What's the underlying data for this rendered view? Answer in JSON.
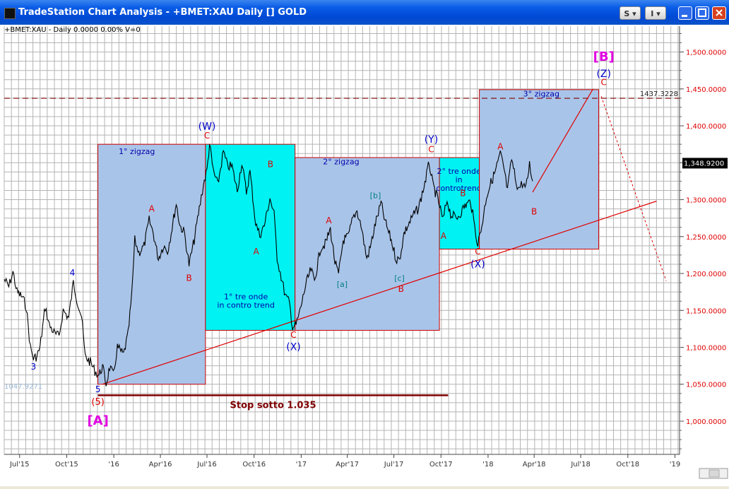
{
  "window": {
    "title": "TradeStation Chart Analysis - +BMET:XAU Daily [] GOLD",
    "btn_s": "S",
    "btn_i": "I"
  },
  "chart_data": {
    "type": "line",
    "title": "+BMET:XAU - Daily  0.0000  0.00%  V=0",
    "y_range": [
      955,
      1535
    ],
    "y_ticks": [
      {
        "v": 1000,
        "label": "1,000.0000"
      },
      {
        "v": 1050,
        "label": "1,050.0000"
      },
      {
        "v": 1100,
        "label": "1,100.0000"
      },
      {
        "v": 1150,
        "label": "1,150.0000"
      },
      {
        "v": 1200,
        "label": "1,200.0000"
      },
      {
        "v": 1250,
        "label": "1,250.0000"
      },
      {
        "v": 1300,
        "label": "1,300.0000"
      },
      {
        "v": 1350,
        "label": "1,350.0000"
      },
      {
        "v": 1400,
        "label": "1,400.0000"
      },
      {
        "v": 1450,
        "label": "1,450.0000"
      },
      {
        "v": 1500,
        "label": "1,500.0000"
      }
    ],
    "x_range": [
      "2015-06-01",
      "2019-01-10"
    ],
    "x_ticks": [
      {
        "d": "2015-07-01",
        "label": "Jul'15"
      },
      {
        "d": "2015-10-01",
        "label": "Oct'15"
      },
      {
        "d": "2016-01-01",
        "label": "'16"
      },
      {
        "d": "2016-04-01",
        "label": "Apr'16"
      },
      {
        "d": "2016-07-01",
        "label": "Jul'16"
      },
      {
        "d": "2016-10-01",
        "label": "Oct'16"
      },
      {
        "d": "2017-01-01",
        "label": "'17"
      },
      {
        "d": "2017-04-01",
        "label": "Apr'17"
      },
      {
        "d": "2017-07-01",
        "label": "Jul'17"
      },
      {
        "d": "2017-10-01",
        "label": "Oct'17"
      },
      {
        "d": "2018-01-01",
        "label": "'18"
      },
      {
        "d": "2018-04-01",
        "label": "Apr'18"
      },
      {
        "d": "2018-07-01",
        "label": "Jul'18"
      },
      {
        "d": "2018-10-01",
        "label": "Oct'18"
      },
      {
        "d": "2019-01-01",
        "label": "'19"
      }
    ],
    "price_series": {
      "name": "GOLD",
      "points": [
        [
          "2015-06-01",
          1192
        ],
        [
          "2015-06-10",
          1182
        ],
        [
          "2015-06-18",
          1202
        ],
        [
          "2015-06-26",
          1175
        ],
        [
          "2015-07-06",
          1168
        ],
        [
          "2015-07-14",
          1155
        ],
        [
          "2015-07-22",
          1100
        ],
        [
          "2015-07-28",
          1085
        ],
        [
          "2015-08-04",
          1088
        ],
        [
          "2015-08-10",
          1100
        ],
        [
          "2015-08-20",
          1155
        ],
        [
          "2015-08-28",
          1130
        ],
        [
          "2015-09-08",
          1118
        ],
        [
          "2015-09-16",
          1115
        ],
        [
          "2015-09-24",
          1150
        ],
        [
          "2015-10-05",
          1140
        ],
        [
          "2015-10-14",
          1188
        ],
        [
          "2015-10-22",
          1162
        ],
        [
          "2015-10-30",
          1142
        ],
        [
          "2015-11-06",
          1088
        ],
        [
          "2015-11-16",
          1080
        ],
        [
          "2015-11-25",
          1068
        ],
        [
          "2015-12-03",
          1062
        ],
        [
          "2015-12-10",
          1074
        ],
        [
          "2015-12-17",
          1050
        ],
        [
          "2015-12-24",
          1073
        ],
        [
          "2015-12-31",
          1062
        ],
        [
          "2016-01-08",
          1100
        ],
        [
          "2016-01-20",
          1090
        ],
        [
          "2016-01-29",
          1118
        ],
        [
          "2016-02-05",
          1170
        ],
        [
          "2016-02-11",
          1245
        ],
        [
          "2016-02-19",
          1228
        ],
        [
          "2016-02-29",
          1237
        ],
        [
          "2016-03-10",
          1272
        ],
        [
          "2016-03-18",
          1255
        ],
        [
          "2016-03-28",
          1220
        ],
        [
          "2016-04-07",
          1238
        ],
        [
          "2016-04-15",
          1230
        ],
        [
          "2016-04-22",
          1255
        ],
        [
          "2016-05-02",
          1295
        ],
        [
          "2016-05-09",
          1265
        ],
        [
          "2016-05-18",
          1255
        ],
        [
          "2016-05-27",
          1212
        ],
        [
          "2016-06-06",
          1245
        ],
        [
          "2016-06-16",
          1288
        ],
        [
          "2016-06-24",
          1320
        ],
        [
          "2016-07-01",
          1340
        ],
        [
          "2016-07-06",
          1375
        ],
        [
          "2016-07-13",
          1340
        ],
        [
          "2016-07-22",
          1320
        ],
        [
          "2016-08-02",
          1365
        ],
        [
          "2016-08-10",
          1345
        ],
        [
          "2016-08-19",
          1345
        ],
        [
          "2016-08-29",
          1312
        ],
        [
          "2016-09-07",
          1350
        ],
        [
          "2016-09-16",
          1310
        ],
        [
          "2016-09-23",
          1338
        ],
        [
          "2016-10-04",
          1268
        ],
        [
          "2016-10-12",
          1252
        ],
        [
          "2016-10-21",
          1265
        ],
        [
          "2016-11-01",
          1302
        ],
        [
          "2016-11-09",
          1280
        ],
        [
          "2016-11-15",
          1222
        ],
        [
          "2016-11-23",
          1195
        ],
        [
          "2016-12-01",
          1170
        ],
        [
          "2016-12-09",
          1160
        ],
        [
          "2016-12-15",
          1128
        ],
        [
          "2016-12-22",
          1130
        ],
        [
          "2016-12-30",
          1150
        ],
        [
          "2017-01-10",
          1185
        ],
        [
          "2017-01-20",
          1205
        ],
        [
          "2017-01-27",
          1190
        ],
        [
          "2017-02-08",
          1235
        ],
        [
          "2017-02-17",
          1240
        ],
        [
          "2017-02-27",
          1260
        ],
        [
          "2017-03-08",
          1215
        ],
        [
          "2017-03-15",
          1198
        ],
        [
          "2017-03-24",
          1245
        ],
        [
          "2017-04-03",
          1250
        ],
        [
          "2017-04-12",
          1275
        ],
        [
          "2017-04-20",
          1285
        ],
        [
          "2017-04-28",
          1265
        ],
        [
          "2017-05-09",
          1220
        ],
        [
          "2017-05-16",
          1235
        ],
        [
          "2017-05-26",
          1268
        ],
        [
          "2017-06-06",
          1295
        ],
        [
          "2017-06-14",
          1270
        ],
        [
          "2017-06-26",
          1245
        ],
        [
          "2017-07-05",
          1220
        ],
        [
          "2017-07-12",
          1218
        ],
        [
          "2017-07-21",
          1255
        ],
        [
          "2017-07-31",
          1268
        ],
        [
          "2017-08-09",
          1280
        ],
        [
          "2017-08-18",
          1288
        ],
        [
          "2017-08-29",
          1318
        ],
        [
          "2017-09-08",
          1350
        ],
        [
          "2017-09-15",
          1320
        ],
        [
          "2017-09-25",
          1300
        ],
        [
          "2017-10-05",
          1272
        ],
        [
          "2017-10-13",
          1300
        ],
        [
          "2017-10-20",
          1280
        ],
        [
          "2017-10-31",
          1275
        ],
        [
          "2017-11-08",
          1282
        ],
        [
          "2017-11-17",
          1292
        ],
        [
          "2017-11-28",
          1298
        ],
        [
          "2017-12-06",
          1262
        ],
        [
          "2017-12-12",
          1240
        ],
        [
          "2017-12-20",
          1265
        ],
        [
          "2017-12-29",
          1305
        ],
        [
          "2018-01-05",
          1320
        ],
        [
          "2018-01-15",
          1338
        ],
        [
          "2018-01-25",
          1362
        ],
        [
          "2018-02-01",
          1342
        ],
        [
          "2018-02-08",
          1312
        ],
        [
          "2018-02-16",
          1355
        ],
        [
          "2018-02-23",
          1330
        ],
        [
          "2018-03-01",
          1315
        ],
        [
          "2018-03-09",
          1322
        ],
        [
          "2018-03-16",
          1315
        ],
        [
          "2018-03-23",
          1348
        ],
        [
          "2018-03-29",
          1325
        ]
      ]
    },
    "trendline": {
      "from": [
        "2015-12-10",
        1050
      ],
      "to": [
        "2018-11-26",
        1298
      ]
    },
    "stop_line": {
      "from": [
        "2015-12-01",
        1035
      ],
      "to": [
        "2017-10-15",
        1035
      ],
      "label": "Stop sotto 1.035"
    },
    "resistance_line": {
      "value": 1437.3228,
      "label": "1437.3228"
    },
    "last_price_label": "1,348.9200",
    "left_price_label": "1047.9271",
    "boxes": [
      {
        "x0": "2015-12-01",
        "x1": "2016-06-28",
        "y0": 1050,
        "y1": 1375,
        "fill": "#A9C4E9",
        "label": "1° zigzag",
        "label_at": [
          "2016-02-15",
          1362
        ]
      },
      {
        "x0": "2016-06-28",
        "x1": "2016-12-20",
        "y0": 1123,
        "y1": 1375,
        "fill": "#00F2F2",
        "label": "1° tre onde\nin contro trend",
        "label_at": [
          "2016-09-15",
          1165
        ]
      },
      {
        "x0": "2016-12-20",
        "x1": "2017-09-28",
        "y0": 1123,
        "y1": 1357,
        "fill": "#A9C4E9",
        "label": "2° zigzag",
        "label_at": [
          "2017-03-20",
          1348
        ]
      },
      {
        "x0": "2017-09-28",
        "x1": "2017-12-15",
        "y0": 1233,
        "y1": 1357,
        "fill": "#00F2F2",
        "label": "2° tre onde\nin\ncontrotrend",
        "label_at": [
          "2017-11-05",
          1335
        ]
      },
      {
        "x0": "2017-12-15",
        "x1": "2018-08-05",
        "y0": 1233,
        "y1": 1449,
        "fill": "#A9C4E9",
        "label": "3° zigzag",
        "label_at": [
          "2018-04-15",
          1440
        ]
      }
    ],
    "projection": [
      [
        "2018-03-29",
        1310
      ],
      [
        "2018-07-25",
        1450
      ]
    ],
    "projection_dotted": [
      [
        "2018-08-10",
        1440
      ],
      [
        "2018-12-15",
        1190
      ]
    ],
    "wave_labels": [
      {
        "d": "2015-10-12",
        "v": 1197,
        "text": "4",
        "color": "#0000CC",
        "size": 12
      },
      {
        "d": "2015-07-28",
        "v": 1070,
        "text": "3",
        "color": "#0000CC",
        "size": 12
      },
      {
        "d": "2015-12-01",
        "v": 1039,
        "text": "5",
        "color": "#0000CC",
        "size": 12
      },
      {
        "d": "2015-12-01",
        "v": 1022,
        "text": "(5)",
        "color": "#E00000",
        "size": 13
      },
      {
        "d": "2015-12-01",
        "v": 995,
        "text": "[A]",
        "color": "#E000E0",
        "size": 18,
        "bold": true
      },
      {
        "d": "2016-03-15",
        "v": 1284,
        "text": "A",
        "color": "#E00000",
        "size": 12
      },
      {
        "d": "2016-05-27",
        "v": 1190,
        "text": "B",
        "color": "#E00000",
        "size": 12
      },
      {
        "d": "2016-07-01",
        "v": 1383,
        "text": "C",
        "color": "#E00000",
        "size": 12
      },
      {
        "d": "2016-07-01",
        "v": 1395,
        "text": "(W)",
        "color": "#0000CC",
        "size": 14
      },
      {
        "d": "2016-11-02",
        "v": 1344,
        "text": "B",
        "color": "#E00000",
        "size": 12
      },
      {
        "d": "2016-10-05",
        "v": 1226,
        "text": "A",
        "color": "#E00000",
        "size": 12
      },
      {
        "d": "2016-12-17",
        "v": 1113,
        "text": "C",
        "color": "#E00000",
        "size": 12
      },
      {
        "d": "2016-12-17",
        "v": 1096,
        "text": "(X)",
        "color": "#0000CC",
        "size": 14
      },
      {
        "d": "2017-02-24",
        "v": 1268,
        "text": "A",
        "color": "#E00000",
        "size": 12
      },
      {
        "d": "2017-03-22",
        "v": 1182,
        "text": "[a]",
        "color": "#008080",
        "size": 11
      },
      {
        "d": "2017-05-26",
        "v": 1302,
        "text": "[b]",
        "color": "#008080",
        "size": 11
      },
      {
        "d": "2017-07-12",
        "v": 1190,
        "text": "[c]",
        "color": "#008080",
        "size": 11
      },
      {
        "d": "2017-07-15",
        "v": 1175,
        "text": "B",
        "color": "#E00000",
        "size": 12
      },
      {
        "d": "2017-09-12",
        "v": 1364,
        "text": "C",
        "color": "#E00000",
        "size": 12
      },
      {
        "d": "2017-09-12",
        "v": 1377,
        "text": "(Y)",
        "color": "#0000CC",
        "size": 14
      },
      {
        "d": "2017-10-06",
        "v": 1247,
        "text": "A",
        "color": "#E00000",
        "size": 12
      },
      {
        "d": "2017-11-13",
        "v": 1305,
        "text": "B",
        "color": "#E00000",
        "size": 12
      },
      {
        "d": "2017-12-12",
        "v": 1226,
        "text": "C",
        "color": "#E00000",
        "size": 12
      },
      {
        "d": "2017-12-12",
        "v": 1208,
        "text": "(X)",
        "color": "#0000CC",
        "size": 14
      },
      {
        "d": "2018-01-25",
        "v": 1368,
        "text": "A",
        "color": "#E00000",
        "size": 12
      },
      {
        "d": "2018-04-01",
        "v": 1280,
        "text": "B",
        "color": "#E00000",
        "size": 12
      },
      {
        "d": "2018-08-15",
        "v": 1455,
        "text": "C",
        "color": "#E00000",
        "size": 12
      },
      {
        "d": "2018-08-15",
        "v": 1466,
        "text": "(Z)",
        "color": "#0000CC",
        "size": 14
      },
      {
        "d": "2018-08-15",
        "v": 1488,
        "text": "[B]",
        "color": "#E000E0",
        "size": 18,
        "bold": true
      }
    ],
    "grid": true,
    "colors": {
      "price": "#000000",
      "trend": "#E00000",
      "stop": "#800000",
      "resistance": "#800000",
      "axis_text": "#E00000",
      "x_text": "#333333",
      "grid": "#B4B4B4",
      "box_border": "#CC0000"
    }
  }
}
